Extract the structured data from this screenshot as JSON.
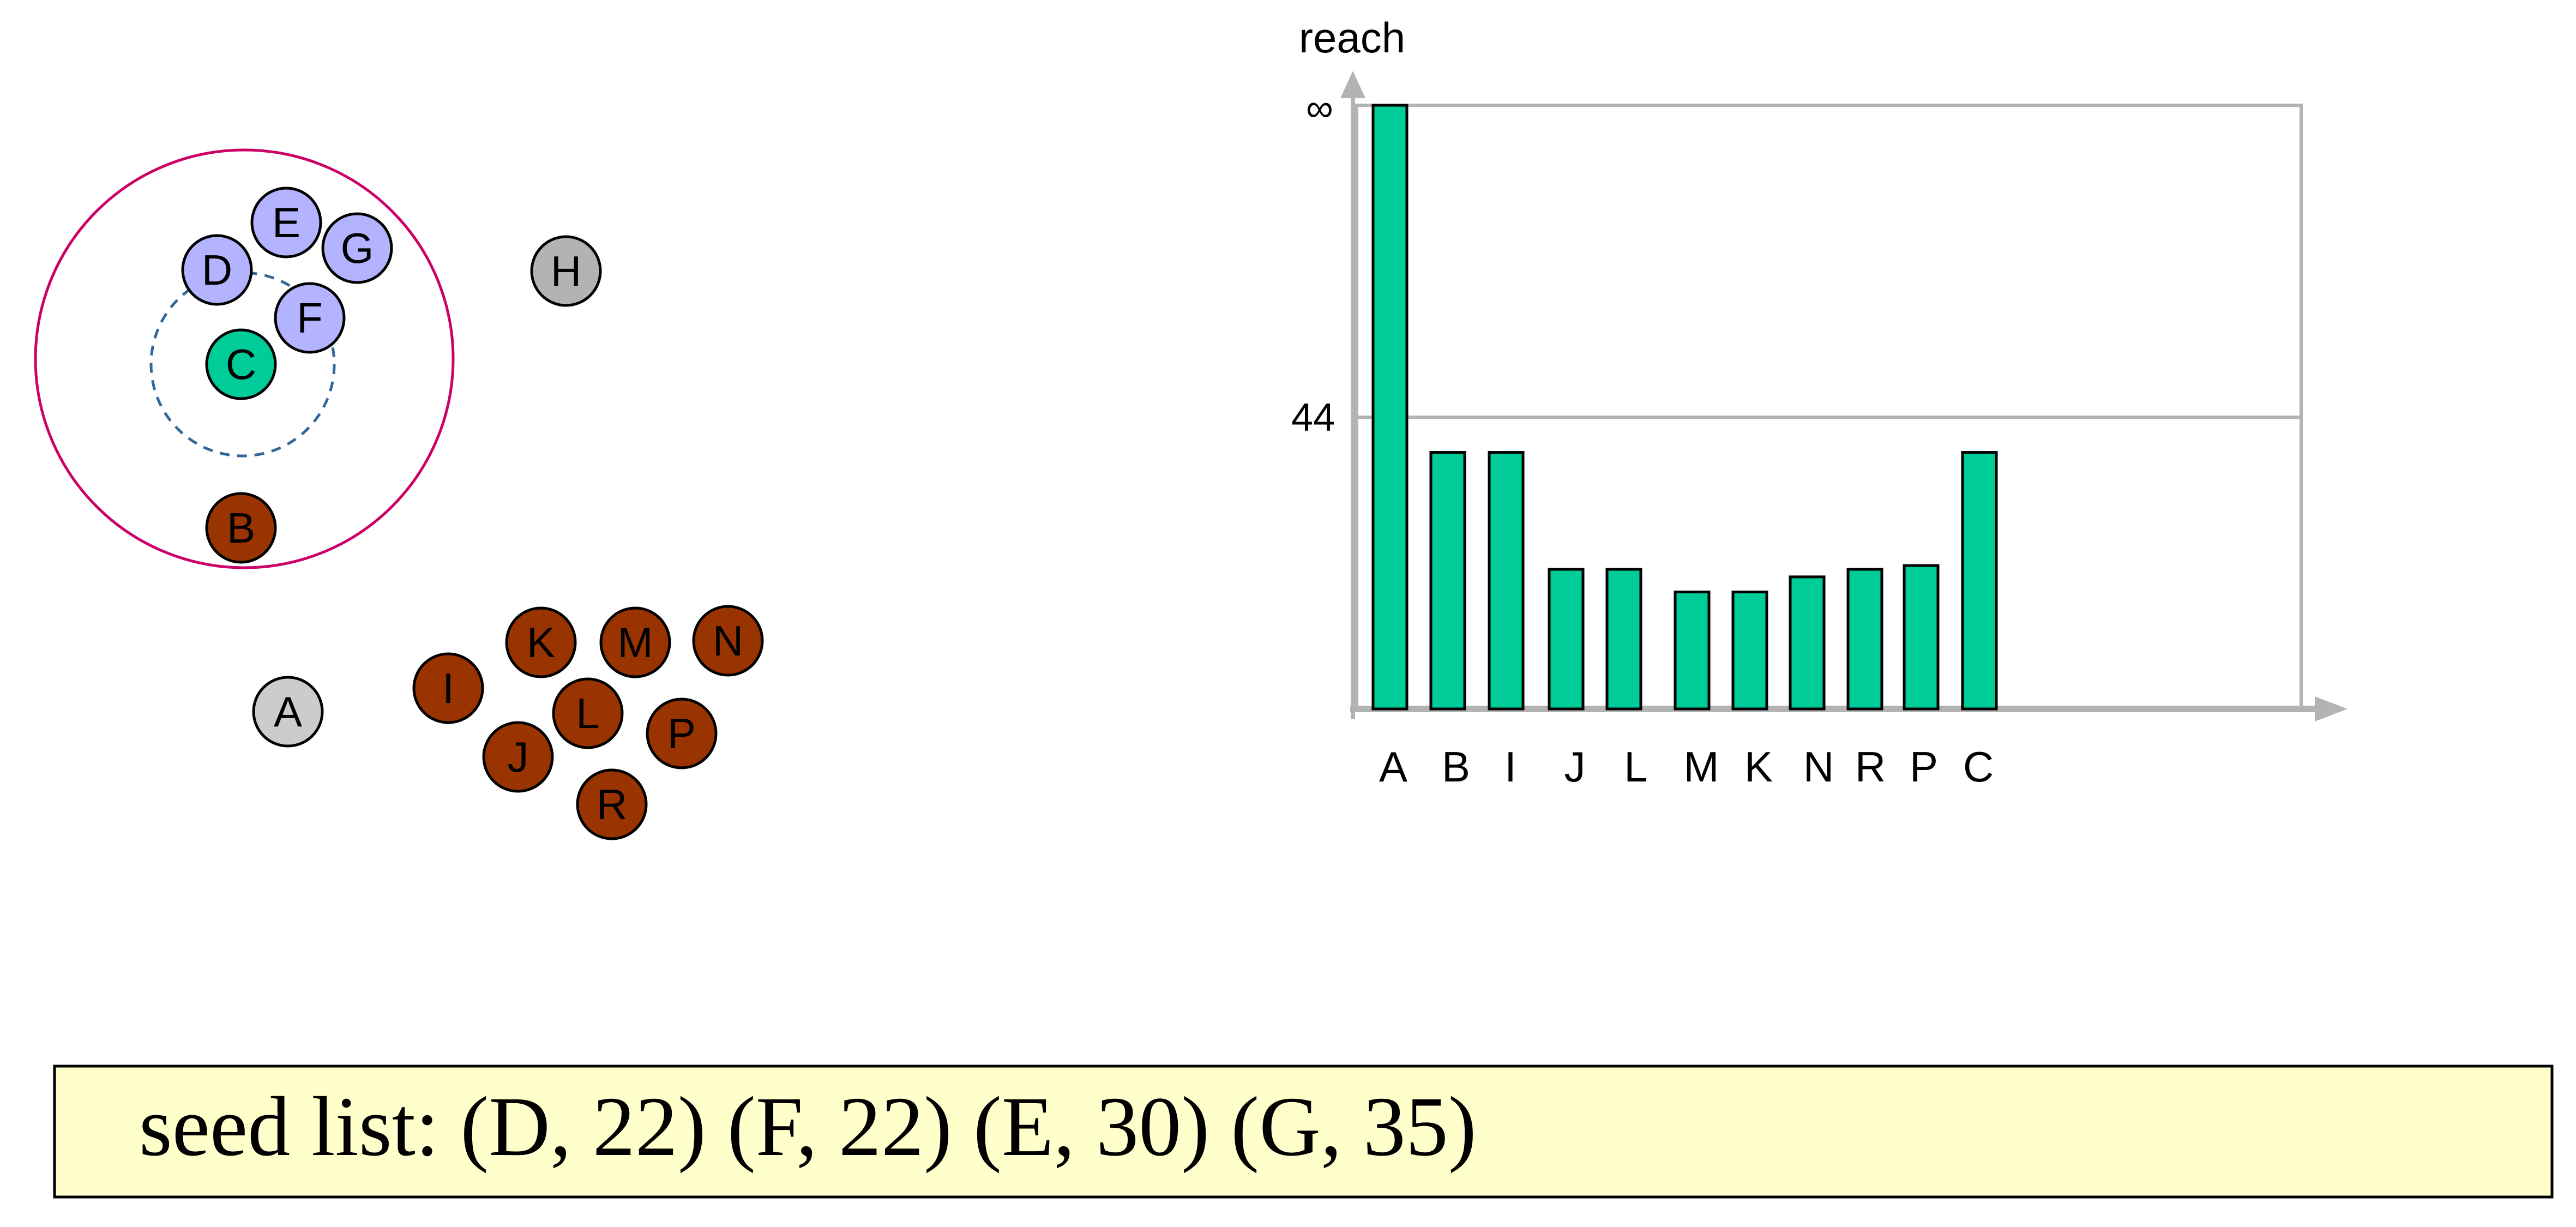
{
  "points": [
    {
      "label": "A",
      "state": "unclustered"
    },
    {
      "label": "B",
      "state": "processed"
    },
    {
      "label": "C",
      "state": "current"
    },
    {
      "label": "D",
      "state": "seed"
    },
    {
      "label": "E",
      "state": "seed"
    },
    {
      "label": "F",
      "state": "seed"
    },
    {
      "label": "G",
      "state": "seed"
    },
    {
      "label": "H",
      "state": "unvisited"
    },
    {
      "label": "I",
      "state": "processed"
    },
    {
      "label": "J",
      "state": "processed"
    },
    {
      "label": "K",
      "state": "processed"
    },
    {
      "label": "L",
      "state": "processed"
    },
    {
      "label": "M",
      "state": "processed"
    },
    {
      "label": "N",
      "state": "processed"
    },
    {
      "label": "P",
      "state": "processed"
    },
    {
      "label": "R",
      "state": "processed"
    }
  ],
  "colors": {
    "processed": "#993300",
    "current": "#00cc99",
    "seed": "#b3b3ff",
    "unvisited": "#b3b3b3",
    "eps_circle": "#cc0066",
    "core_circle": "#336699",
    "bar": "#00cc99",
    "axis": "#b3b3b3",
    "seed_box_bg": "#ffffcc"
  },
  "chart_data": {
    "type": "bar",
    "ylabel": "reach",
    "y_tick_labels": [
      "∞",
      "44"
    ],
    "categories": [
      "A",
      "B",
      "I",
      "J",
      "L",
      "M",
      "K",
      "N",
      "R",
      "P",
      "C"
    ],
    "values": [
      80,
      34,
      34,
      18.5,
      18.5,
      15.5,
      15.5,
      17.5,
      18.5,
      19,
      34
    ],
    "infinite": [
      "A"
    ],
    "ylim": [
      0,
      80
    ],
    "grid": true
  },
  "seed_list": {
    "text": "seed list: (D, 22) (F, 22) (E, 30) (G, 35)"
  }
}
